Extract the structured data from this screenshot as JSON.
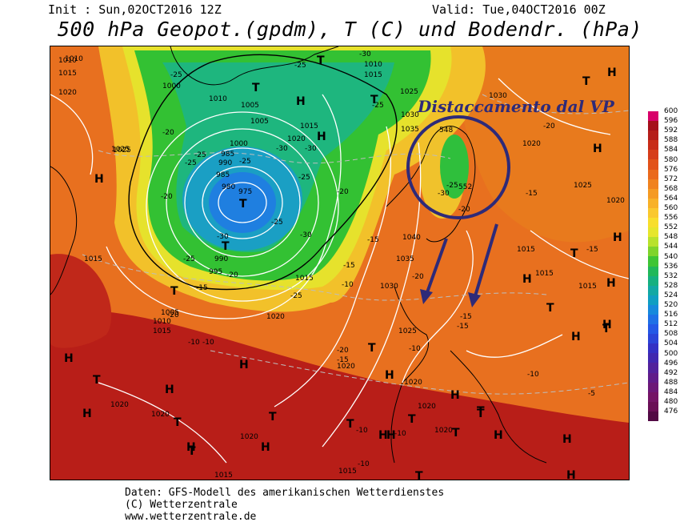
{
  "header": {
    "init": "Init : Sun,02OCT2016 12Z",
    "valid": "Valid: Tue,04OCT2016 00Z",
    "title": "500 hPa Geopot.(gpdm), T (C) und Bodendr. (hPa)"
  },
  "annotation": {
    "text": "Distaccamento dal VP",
    "color": "#2e2a78"
  },
  "legend": {
    "values": [
      "600",
      "596",
      "592",
      "588",
      "584",
      "580",
      "576",
      "572",
      "568",
      "564",
      "560",
      "556",
      "552",
      "548",
      "544",
      "540",
      "536",
      "532",
      "528",
      "524",
      "520",
      "516",
      "512",
      "508",
      "504",
      "500",
      "496",
      "492",
      "488",
      "484",
      "480",
      "476"
    ],
    "colors": [
      "#d8006a",
      "#a50f1a",
      "#b51e1a",
      "#c82c18",
      "#d63d1a",
      "#e25219",
      "#ea6a1c",
      "#f0821f",
      "#f59a23",
      "#f8b128",
      "#fac82e",
      "#f8de2c",
      "#e6e62c",
      "#b8e22c",
      "#7fd42b",
      "#3fc535",
      "#21b85a",
      "#16b080",
      "#12a8a4",
      "#0f9ec2",
      "#1689dc",
      "#1e70e6",
      "#2458e6",
      "#2b44d8",
      "#3430c4",
      "#4128b0",
      "#52229c",
      "#601c8a",
      "#6c1878",
      "#741466",
      "#6a0f56",
      "#520a44"
    ]
  },
  "map_labels": {
    "pressure": [
      "1010",
      "1015",
      "1020",
      "1025",
      "1000",
      "1010",
      "1005",
      "1005",
      "1015",
      "1020",
      "1000",
      "985",
      "990",
      "985",
      "980",
      "975",
      "990",
      "995",
      "1005",
      "1010",
      "1015",
      "1015",
      "1025",
      "1030",
      "1035",
      "1040",
      "1035",
      "1030",
      "1020",
      "1025",
      "1020",
      "1015",
      "1015",
      "1025",
      "1020",
      "1030",
      "1015",
      "1015",
      "1020",
      "1020",
      "1020",
      "1020",
      "1020",
      "1015",
      "1015",
      "1020",
      "1020",
      "1025",
      "1010",
      "1010",
      "1015"
    ],
    "temperature": [
      "-30",
      "-25",
      "-25",
      "-20",
      "-25",
      "-25",
      "-25",
      "-30",
      "-30",
      "-20",
      "-30",
      "-25",
      "-30",
      "-25",
      "-20",
      "-25",
      "-25",
      "-20",
      "-20",
      "-15",
      "-30",
      "-25",
      "-20",
      "-20",
      "-15",
      "-15",
      "-25",
      "-20",
      "-15",
      "-15",
      "-10",
      "-20",
      "-15",
      "-10",
      "-10",
      "-10",
      "-10",
      "-10",
      "-5",
      "-10",
      "-10",
      "-15",
      "-15"
    ],
    "highs": [
      "H",
      "H",
      "H",
      "H",
      "H",
      "H",
      "H",
      "H",
      "H",
      "H",
      "H",
      "H",
      "H",
      "H",
      "H",
      "H",
      "H",
      "H",
      "H",
      "H",
      "H",
      "H",
      "H"
    ],
    "lows": [
      "T",
      "T",
      "T",
      "T",
      "T",
      "T",
      "T",
      "T",
      "T",
      "T",
      "T",
      "T",
      "T",
      "T",
      "T",
      "T",
      "T",
      "T",
      "T",
      "T",
      "T"
    ],
    "isohypses": [
      "548",
      "552"
    ]
  },
  "credits": {
    "line1": "Daten: GFS-Modell des amerikanischen Wetterdienstes",
    "line2": "(C) Wetterzentrale",
    "line3": "www.wetterzentrale.de"
  }
}
